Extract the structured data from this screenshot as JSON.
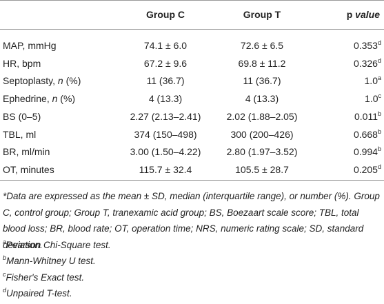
{
  "table": {
    "header": [
      "Group C",
      "Group T",
      [
        "p",
        " value"
      ]
    ],
    "rows": [
      {
        "label": [
          "MAP, mmHg"
        ],
        "c": "74.1 ± 6.0",
        "t": "72.6 ± 6.5",
        "p": "0.353",
        "mark": "d"
      },
      {
        "label": [
          "HR, bpm"
        ],
        "c": "67.2 ± 9.6",
        "t": "69.8 ± 11.2",
        "p": "0.326",
        "mark": "d"
      },
      {
        "label": [
          "Septoplasty, ",
          "n",
          " (%)"
        ],
        "c": "11 (36.7)",
        "t": "11 (36.7)",
        "p": "1.0",
        "mark": "a"
      },
      {
        "label": [
          "Ephedrine, ",
          "n",
          " (%)"
        ],
        "c": "4 (13.3)",
        "t": "4 (13.3)",
        "p": "1.0",
        "mark": "c"
      },
      {
        "label": [
          "BS (0–5)"
        ],
        "c": "2.27 (2.13–2.41)",
        "t": "2.02 (1.88–2.05)",
        "p": "0.011",
        "mark": "b"
      },
      {
        "label": [
          "TBL, ml"
        ],
        "c": "374 (150–498)",
        "t": "300 (200–426)",
        "p": "0.668",
        "mark": "b"
      },
      {
        "label": [
          "BR, ml/min"
        ],
        "c": "3.00 (1.50–4.22)",
        "t": "2.80 (1.97–3.52)",
        "p": "0.994",
        "mark": "b"
      },
      {
        "label": [
          "OT, minutes"
        ],
        "c": "115.7 ± 32.4",
        "t": "105.5 ± 28.7",
        "p": "0.205",
        "mark": "d"
      }
    ]
  },
  "footnotes": {
    "general": "*Data are expressed as the mean ± SD, median (interquartile range), or number (%). Group C, control group; Group T, tranexamic acid group; BS, Boezaart scale score; TBL, total blood loss; BR, blood rate; OT, operation time; NRS, numeric rating scale; SD, standard deviation.",
    "items": [
      {
        "mark": "a",
        "text": "Pearson Chi-Square test."
      },
      {
        "mark": "b",
        "text": "Mann-Whitney U test."
      },
      {
        "mark": "c",
        "text": "Fisher's Exact test."
      },
      {
        "mark": "d",
        "text": "Unpaired T-test."
      }
    ]
  }
}
